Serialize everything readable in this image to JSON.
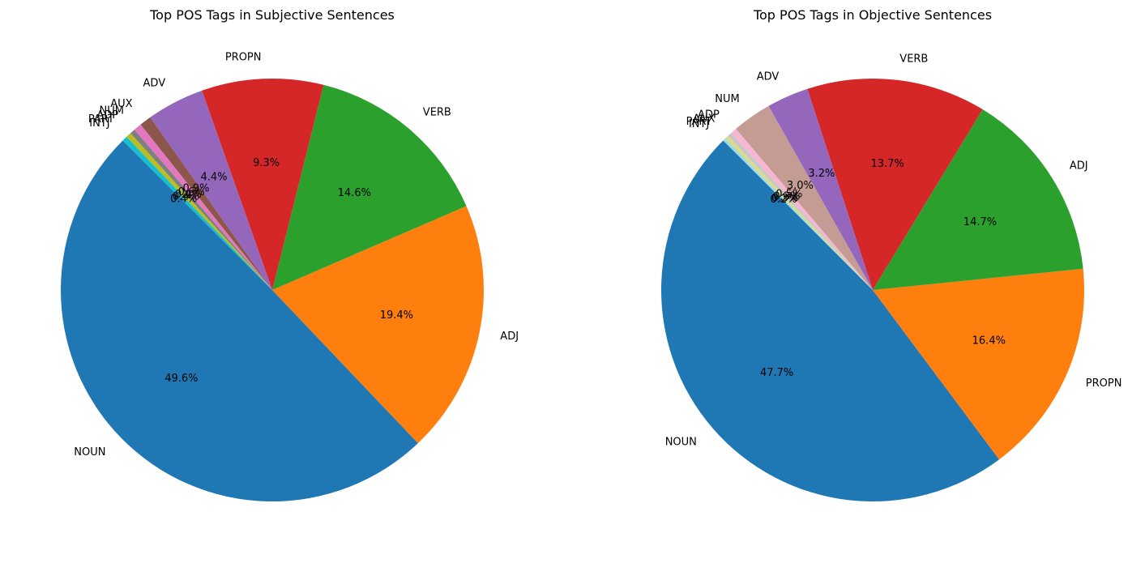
{
  "colors": {
    "NOUN": "#1f77b4",
    "ADJ": "#ff7f0e",
    "VERB": "#2ca02c",
    "PROPN": "#d62728",
    "ADV": "#9467bd",
    "AUX": "#8c564b",
    "NUM": "#e377c2",
    "ADP": "#7f7f7f",
    "PART": "#bcbd22",
    "INTJ": "#17becf"
  },
  "chart_data": [
    {
      "type": "pie",
      "title": "Top POS Tags in Subjective Sentences",
      "start_angle": 135,
      "direction": "counterclockwise",
      "slices": [
        {
          "label": "NOUN",
          "value": 49.6,
          "pct_text": "49.6%",
          "color": "#1f77b4"
        },
        {
          "label": "ADJ",
          "value": 19.4,
          "pct_text": "19.4%",
          "color": "#ff7f0e"
        },
        {
          "label": "VERB",
          "value": 14.6,
          "pct_text": "14.6%",
          "color": "#2ca02c"
        },
        {
          "label": "PROPN",
          "value": 9.3,
          "pct_text": "9.3%",
          "color": "#d62728"
        },
        {
          "label": "ADV",
          "value": 4.4,
          "pct_text": "4.4%",
          "color": "#9467bd"
        },
        {
          "label": "AUX",
          "value": 0.9,
          "pct_text": "0.9%",
          "color": "#8c564b"
        },
        {
          "label": "NUM",
          "value": 0.6,
          "pct_text": "0.6%",
          "color": "#e377c2"
        },
        {
          "label": "ADP",
          "value": 0.4,
          "pct_text": "0.4%",
          "color": "#7f7f7f"
        },
        {
          "label": "PART",
          "value": 0.4,
          "pct_text": "0.4%",
          "color": "#bcbd22"
        },
        {
          "label": "INTJ",
          "value": 0.4,
          "pct_text": "0.4%",
          "color": "#17becf"
        }
      ]
    },
    {
      "type": "pie",
      "title": "Top POS Tags in Objective Sentences",
      "start_angle": 135,
      "direction": "counterclockwise",
      "slices": [
        {
          "label": "NOUN",
          "value": 47.7,
          "pct_text": "47.7%",
          "color": "#1f77b4"
        },
        {
          "label": "PROPN",
          "value": 16.4,
          "pct_text": "16.4%",
          "color": "#ff7f0e"
        },
        {
          "label": "ADJ",
          "value": 14.7,
          "pct_text": "14.7%",
          "color": "#2ca02c"
        },
        {
          "label": "VERB",
          "value": 13.7,
          "pct_text": "13.7%",
          "color": "#d62728"
        },
        {
          "label": "ADV",
          "value": 3.2,
          "pct_text": "3.2%",
          "color": "#9467bd"
        },
        {
          "label": "NUM",
          "value": 3.0,
          "pct_text": "3.0%",
          "color": "#c49c94"
        },
        {
          "label": "ADP",
          "value": 0.5,
          "pct_text": "0.5%",
          "color": "#f7b6d2"
        },
        {
          "label": "AUX",
          "value": 0.3,
          "pct_text": "0.3%",
          "color": "#c7c7c7"
        },
        {
          "label": "PART",
          "value": 0.3,
          "pct_text": "0.3%",
          "color": "#dbdb8d"
        },
        {
          "label": "INTJ",
          "value": 0.2,
          "pct_text": "0.2%",
          "color": "#9edae5"
        }
      ]
    }
  ]
}
